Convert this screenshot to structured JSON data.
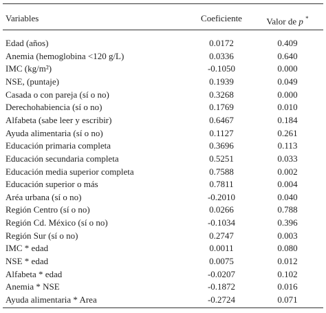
{
  "header": {
    "variables": "Variables",
    "coefficient": "Coeficiente",
    "p_label": "Valor de",
    "p_symbol": "p",
    "p_mark": "*"
  },
  "table": {
    "rows": [
      [
        "Edad (años)",
        "0.0172",
        "0.409"
      ],
      [
        "Anemia (hemoglobina <120 g/L)",
        "0.0336",
        "0.640"
      ],
      [
        "IMC (kg/m²)",
        "-0.1050",
        "0.000"
      ],
      [
        "NSE, (puntaje)",
        "0.1939",
        "0.049"
      ],
      [
        "Casada o con pareja (sí o no)",
        "0.3268",
        "0.000"
      ],
      [
        "Derechohabiencia (sí o no)",
        "0.1769",
        "0.010"
      ],
      [
        "Alfabeta (sabe leer y escribir)",
        "0.6467",
        "0.184"
      ],
      [
        "Ayuda alimentaria (sí o no)",
        "0.1127",
        "0.261"
      ],
      [
        "Educación primaria completa",
        "0.3696",
        "0.113"
      ],
      [
        "Educación secundaria completa",
        "0.5251",
        "0.033"
      ],
      [
        "Educación media superior completa",
        "0.7588",
        "0.002"
      ],
      [
        "Educación superior o más",
        "0.7811",
        "0.004"
      ],
      [
        "Aréa urbana (sí o no)",
        "-0.2010",
        "0.040"
      ],
      [
        "Región Centro (sí o no)",
        "0.0266",
        "0.788"
      ],
      [
        "Región Cd. México (sí o no)",
        "-0.1034",
        "0.396"
      ],
      [
        "Región Sur (sí o no)",
        "0.2747",
        "0.003"
      ],
      [
        "IMC * edad",
        "0.0011",
        "0.080"
      ],
      [
        "NSE * edad",
        "0.0075",
        "0.012"
      ],
      [
        "Alfabeta * edad",
        "-0.0207",
        "0.102"
      ],
      [
        "Anemia * NSE",
        "-0.1872",
        "0.016"
      ],
      [
        "Ayuda alimentaria * Area",
        "-0.2724",
        "0.071"
      ]
    ]
  }
}
